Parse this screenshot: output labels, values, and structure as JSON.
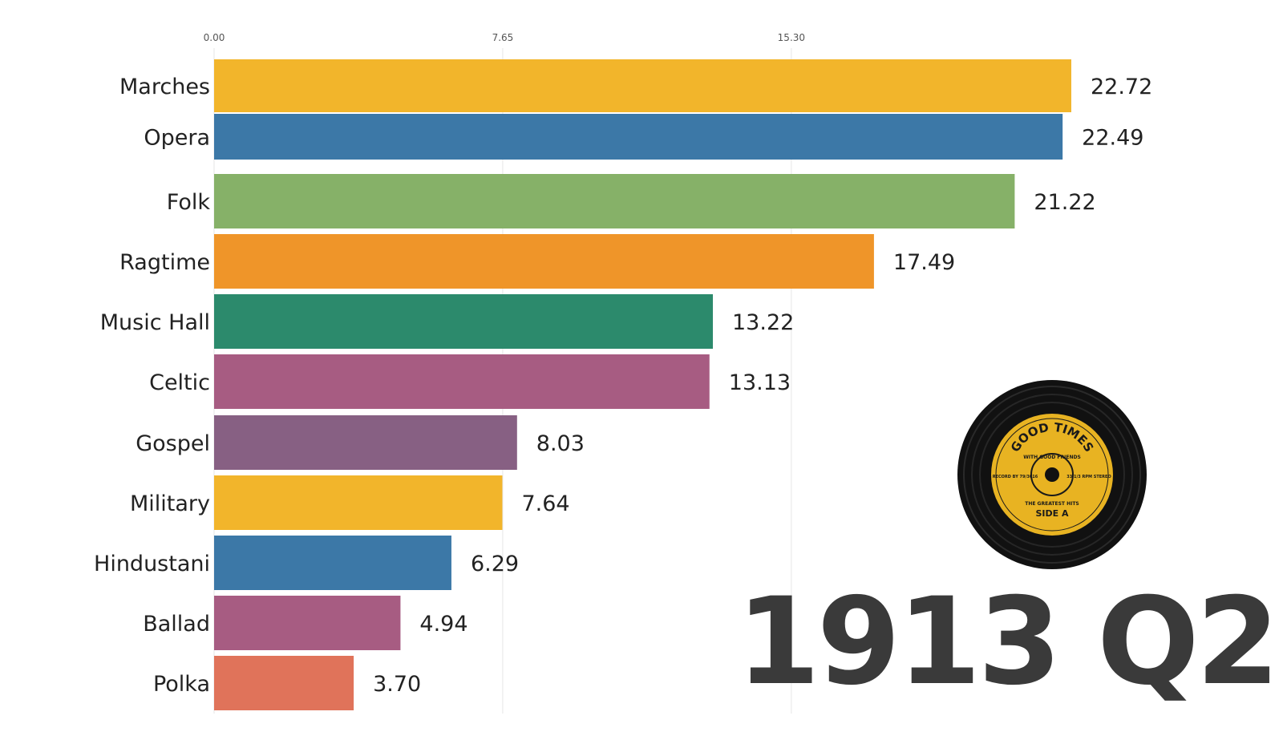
{
  "colors": {
    "marches": "#F2B52B",
    "opera": "#3C78A7",
    "folk": "#86B168",
    "ragtime": "#EF9529",
    "music_hall": "#2C8A6C",
    "celtic": "#A75C82",
    "gospel": "#876083",
    "military": "#F2B52B",
    "hindustani": "#3C78A7",
    "ballad": "#A75C82",
    "polka": "#E0735A",
    "gridline": "#e6e6e6",
    "period_text": "#3a3a3a",
    "record_black": "#111111",
    "record_label": "#E8B322"
  },
  "chart_data": {
    "type": "bar",
    "orientation": "horizontal",
    "xlim": [
      0,
      30.6
    ],
    "ticks": [
      0,
      7.65,
      15.3
    ],
    "tick_labels": [
      "0.00",
      "7.65",
      "15.30"
    ],
    "grid": true,
    "categories": [
      "Marches",
      "Opera",
      "Folk",
      "Ragtime",
      "Music Hall",
      "Celtic",
      "Gospel",
      "Military",
      "Hindustani",
      "Ballad",
      "Polka"
    ],
    "values": [
      22.72,
      22.49,
      21.22,
      17.49,
      13.22,
      13.13,
      8.03,
      7.64,
      6.29,
      4.94,
      3.7
    ],
    "value_labels": [
      "22.72",
      "22.49",
      "21.22",
      "17.49",
      "13.22",
      "13.13",
      "8.03",
      "7.64",
      "6.29",
      "4.94",
      "3.70"
    ],
    "color_keys": [
      "marches",
      "opera",
      "folk",
      "ragtime",
      "music_hall",
      "celtic",
      "gospel",
      "military",
      "hindustani",
      "ballad",
      "polka"
    ]
  },
  "period": "1913 Q2",
  "record": {
    "icon": "vinyl-record-icon",
    "title": "GOOD TIMES",
    "subtitle": "WITH GOOD FRIENDS",
    "bottom_text": "THE GREATEST HITS",
    "side": "SIDE A",
    "left_small": "RECORD BY 79/3016",
    "right_small": "33 1/3 RPM STEREO"
  }
}
